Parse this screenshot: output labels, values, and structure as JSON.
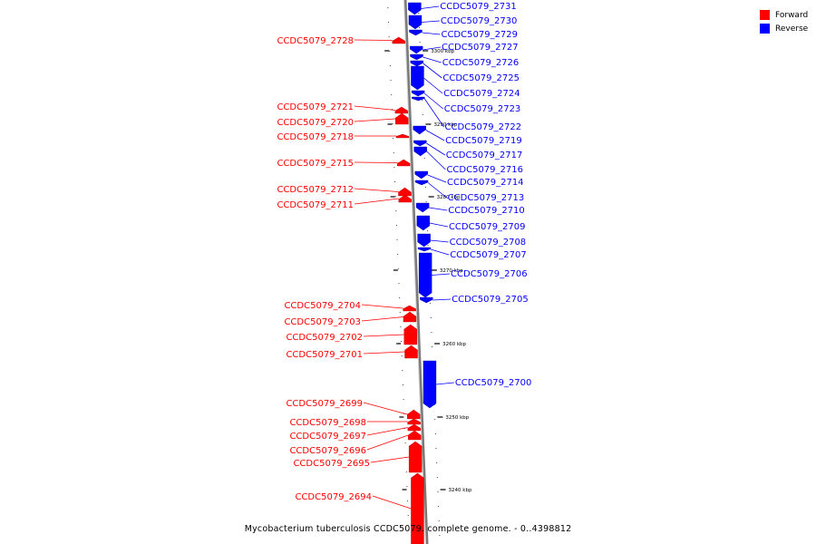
{
  "caption": "Mycobacterium tuberculosis CCDC5079. complete genome. - 0..4398812",
  "legend": [
    {
      "label": "Forward",
      "color": "#ff0000"
    },
    {
      "label": "Reverse",
      "color": "#0000ff"
    }
  ],
  "colors": {
    "forward": "#ff0000",
    "reverse": "#0000ff",
    "backbone": "#888888"
  },
  "axis_ticks": [
    {
      "label": "3300 kbp",
      "kbp": 3300
    },
    {
      "label": "3290 kbp",
      "kbp": 3290
    },
    {
      "label": "3280 kbp",
      "kbp": 3280
    },
    {
      "label": "3270 kbp",
      "kbp": 3270
    },
    {
      "label": "3260 kbp",
      "kbp": 3260
    },
    {
      "label": "3250 kbp",
      "kbp": 3250
    },
    {
      "label": "3240 kbp",
      "kbp": 3240
    }
  ],
  "forward_genes": [
    {
      "label": "CCDC5079_2728"
    },
    {
      "label": "CCDC5079_2721"
    },
    {
      "label": "CCDC5079_2720"
    },
    {
      "label": "CCDC5079_2718"
    },
    {
      "label": "CCDC5079_2715"
    },
    {
      "label": "CCDC5079_2712"
    },
    {
      "label": "CCDC5079_2711"
    },
    {
      "label": "CCDC5079_2704"
    },
    {
      "label": "CCDC5079_2703"
    },
    {
      "label": "CCDC5079_2702"
    },
    {
      "label": "CCDC5079_2701"
    },
    {
      "label": "CCDC5079_2699"
    },
    {
      "label": "CCDC5079_2698"
    },
    {
      "label": "CCDC5079_2697"
    },
    {
      "label": "CCDC5079_2696"
    },
    {
      "label": "CCDC5079_2695"
    },
    {
      "label": "CCDC5079_2694"
    }
  ],
  "reverse_genes": [
    {
      "label": "CCDC5079_2731"
    },
    {
      "label": "CCDC5079_2730"
    },
    {
      "label": "CCDC5079_2729"
    },
    {
      "label": "CCDC5079_2727"
    },
    {
      "label": "CCDC5079_2726"
    },
    {
      "label": "CCDC5079_2725"
    },
    {
      "label": "CCDC5079_2724"
    },
    {
      "label": "CCDC5079_2723"
    },
    {
      "label": "CCDC5079_2722"
    },
    {
      "label": "CCDC5079_2719"
    },
    {
      "label": "CCDC5079_2717"
    },
    {
      "label": "CCDC5079_2716"
    },
    {
      "label": "CCDC5079_2714"
    },
    {
      "label": "CCDC5079_2713"
    },
    {
      "label": "CCDC5079_2710"
    },
    {
      "label": "CCDC5079_2709"
    },
    {
      "label": "CCDC5079_2708"
    },
    {
      "label": "CCDC5079_2707"
    },
    {
      "label": "CCDC5079_2706"
    },
    {
      "label": "CCDC5079_2705"
    },
    {
      "label": "CCDC5079_2700"
    }
  ]
}
